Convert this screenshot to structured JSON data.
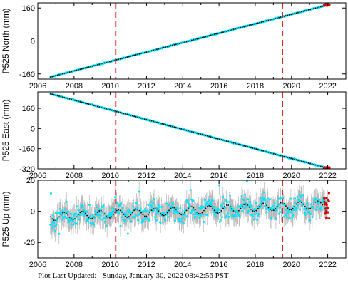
{
  "chart_data": [
    {
      "type": "scatter",
      "ylabel": "P525 North (mm)",
      "xlim": [
        2006,
        2023
      ],
      "ylim": [
        -185,
        185
      ],
      "xticks": [
        2006,
        2008,
        2010,
        2012,
        2014,
        2016,
        2018,
        2020,
        2022
      ],
      "yticks": [
        -160,
        0,
        160
      ],
      "vlines": [
        2010.3,
        2019.5
      ],
      "series": [
        {
          "role": "observations",
          "color": "#00e5ff",
          "x": [
            2006.7,
            2022.0
          ],
          "y": [
            -175,
            175
          ]
        },
        {
          "role": "model",
          "color": "#000000",
          "x": [
            2006.7,
            2022.0
          ],
          "y": [
            -175,
            175
          ]
        },
        {
          "role": "recent",
          "color": "#e00000",
          "x": [
            2021.8,
            2022.1
          ],
          "y": [
            171,
            178
          ]
        }
      ]
    },
    {
      "type": "scatter",
      "ylabel": "P525 East (mm)",
      "xlim": [
        2006,
        2023
      ],
      "ylim": [
        -320,
        290
      ],
      "xticks": [
        2006,
        2008,
        2010,
        2012,
        2014,
        2016,
        2018,
        2020,
        2022
      ],
      "yticks": [
        -320,
        -160,
        0,
        160
      ],
      "vlines": [
        2010.3,
        2019.5
      ],
      "series": [
        {
          "role": "observations",
          "color": "#00e5ff",
          "x": [
            2006.7,
            2022.0
          ],
          "y": [
            275,
            -315
          ]
        },
        {
          "role": "model",
          "color": "#000000",
          "x": [
            2006.7,
            2022.0
          ],
          "y": [
            275,
            -315
          ]
        },
        {
          "role": "recent",
          "color": "#e00000",
          "x": [
            2021.8,
            2022.1
          ],
          "y": [
            -308,
            -318
          ]
        }
      ]
    },
    {
      "type": "scatter",
      "ylabel": "P525 Up (mm)",
      "xlim": [
        2006,
        2023
      ],
      "ylim": [
        -30,
        20
      ],
      "xticks": [
        2006,
        2008,
        2010,
        2012,
        2014,
        2016,
        2018,
        2020,
        2022
      ],
      "yticks": [
        -20,
        0,
        20
      ],
      "vlines": [
        2010.3,
        2019.5
      ],
      "series": [
        {
          "role": "observations",
          "color": "#00e5ff",
          "trend": [
            -3.5,
            4.5
          ],
          "seasonal_amplitude": 2.5,
          "scatter": 6
        },
        {
          "role": "model",
          "color": "#000000",
          "trend": [
            -3.5,
            4.5
          ],
          "seasonal_amplitude": 2.5
        },
        {
          "role": "recent",
          "color": "#e00000",
          "x": [
            2021.8,
            2022.1
          ],
          "y": [
            -5,
            12
          ]
        }
      ]
    }
  ],
  "footer": {
    "label": "Plot Last Updated:",
    "value": "Sunday, January 30, 2022 08:42:56 PST"
  },
  "colors": {
    "error_bars": "#aaaaaa",
    "vline": "#e02020",
    "frame": "#000000"
  }
}
